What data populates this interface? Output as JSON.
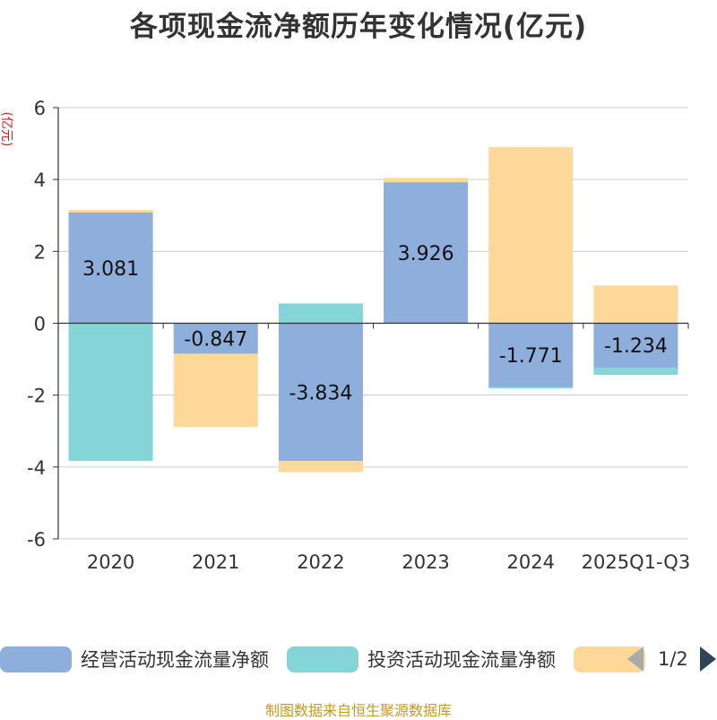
{
  "chart_data": {
    "type": "bar",
    "stacked": true,
    "title": "各项现金流净额历年变化情况(亿元)",
    "ylabel": "(亿元)",
    "ylim": [
      -6,
      6
    ],
    "yticks": [
      -6,
      -4,
      -2,
      0,
      2,
      4,
      6
    ],
    "grid": true,
    "categories": [
      "2020",
      "2021",
      "2022",
      "2023",
      "2024",
      "2025Q1-Q3"
    ],
    "series": [
      {
        "name": "经营活动现金流量净额",
        "color": "#8eaedb",
        "values": [
          3.081,
          -0.847,
          -3.834,
          3.926,
          -1.771,
          -1.234
        ],
        "show_labels": true
      },
      {
        "name": "投资活动现金流量净额",
        "color": "#85d5d8",
        "values": [
          -3.83,
          0.01,
          0.55,
          0.0,
          -0.04,
          -0.2
        ],
        "show_labels": false
      },
      {
        "name": "",
        "color": "#fdd898",
        "values": [
          0.07,
          -2.04,
          -0.31,
          0.12,
          4.9,
          1.05
        ],
        "show_labels": false
      }
    ],
    "legend_position": "bottom",
    "legend_page": "1/2"
  },
  "legend": {
    "items": [
      {
        "label": "经营活动现金流量净额",
        "color": "#8eaedb"
      },
      {
        "label": "投资活动现金流量净额",
        "color": "#85d5d8"
      },
      {
        "label": "",
        "color": "#fdd898"
      }
    ],
    "page": "1/2"
  },
  "source": "制图数据来自恒生聚源数据库"
}
